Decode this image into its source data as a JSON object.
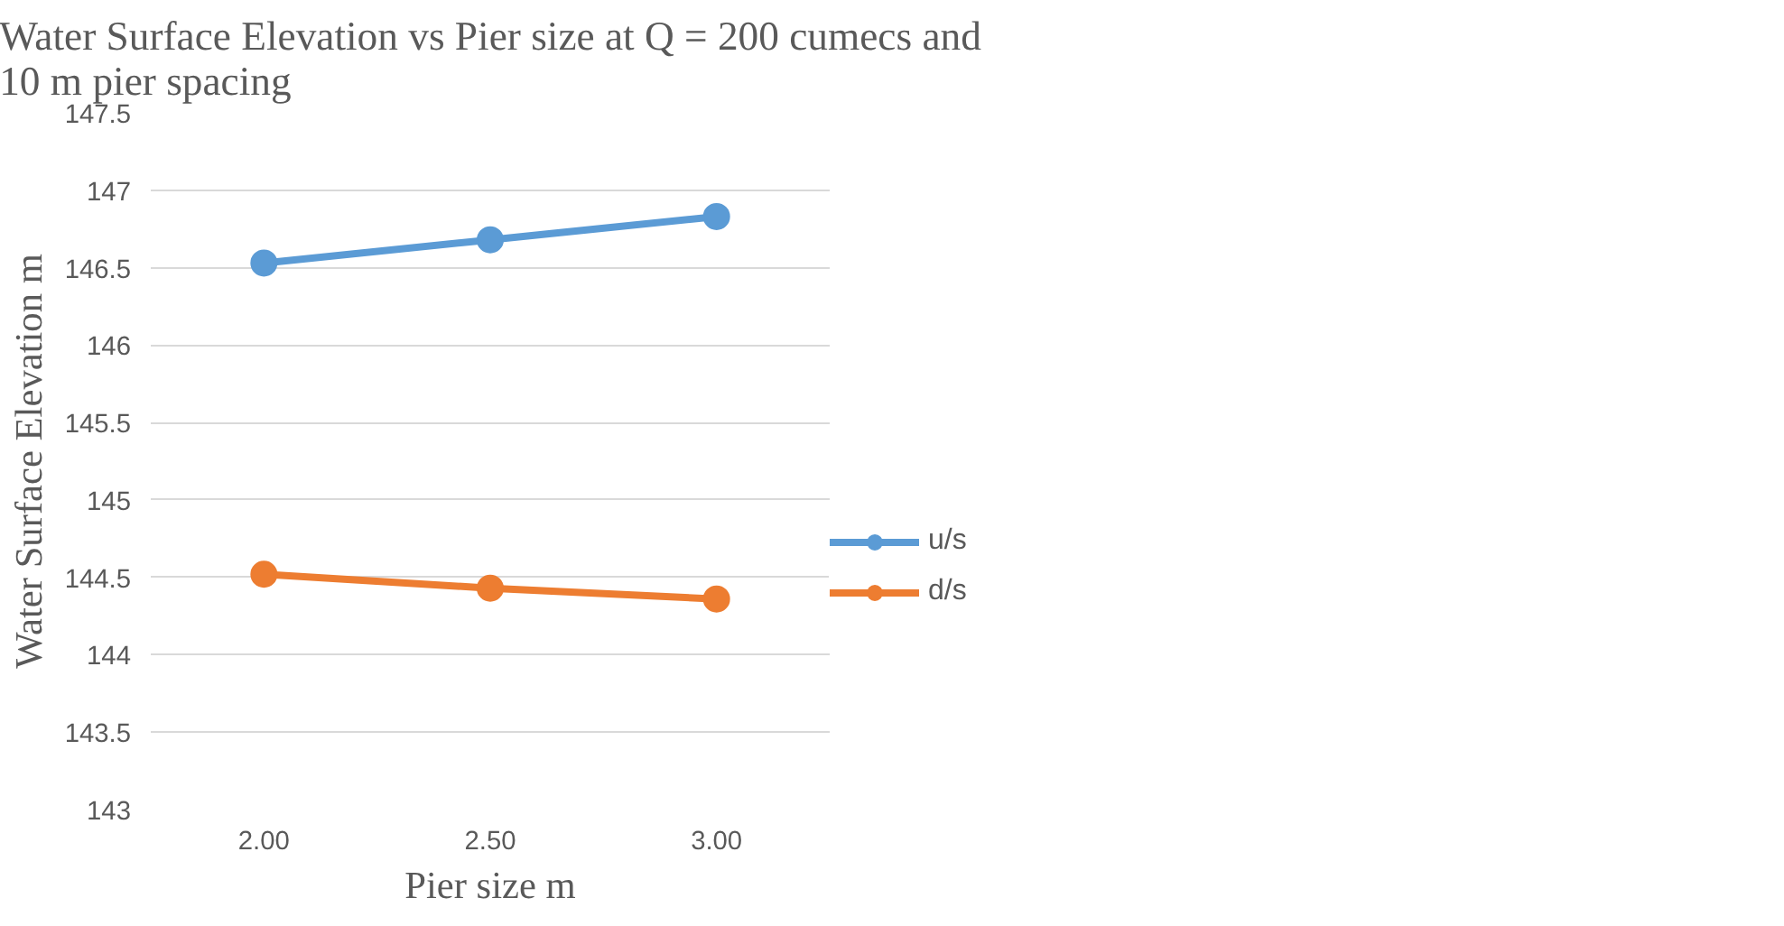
{
  "chart_data": {
    "type": "line",
    "title": "Water Surface Elevation vs Pier size at Q = 200 cumecs and\n10 m pier spacing",
    "xlabel": "Pier size m",
    "ylabel": "Water Surface Elevation m",
    "categories": [
      "2.00",
      "2.50",
      "3.00"
    ],
    "series": [
      {
        "name": "u/s",
        "color": "#5b9bd5",
        "values": [
          146.53,
          146.68,
          146.83
        ]
      },
      {
        "name": "d/s",
        "color": "#ed7d31",
        "values": [
          144.52,
          144.43,
          144.36
        ]
      }
    ],
    "ylim": [
      143,
      147.5
    ],
    "yticks": [
      143,
      143.5,
      144,
      144.5,
      145,
      145.5,
      146,
      146.5,
      147,
      147.5
    ],
    "grid": "y",
    "legend": "right",
    "marker": "circle",
    "line_style": "solid"
  }
}
